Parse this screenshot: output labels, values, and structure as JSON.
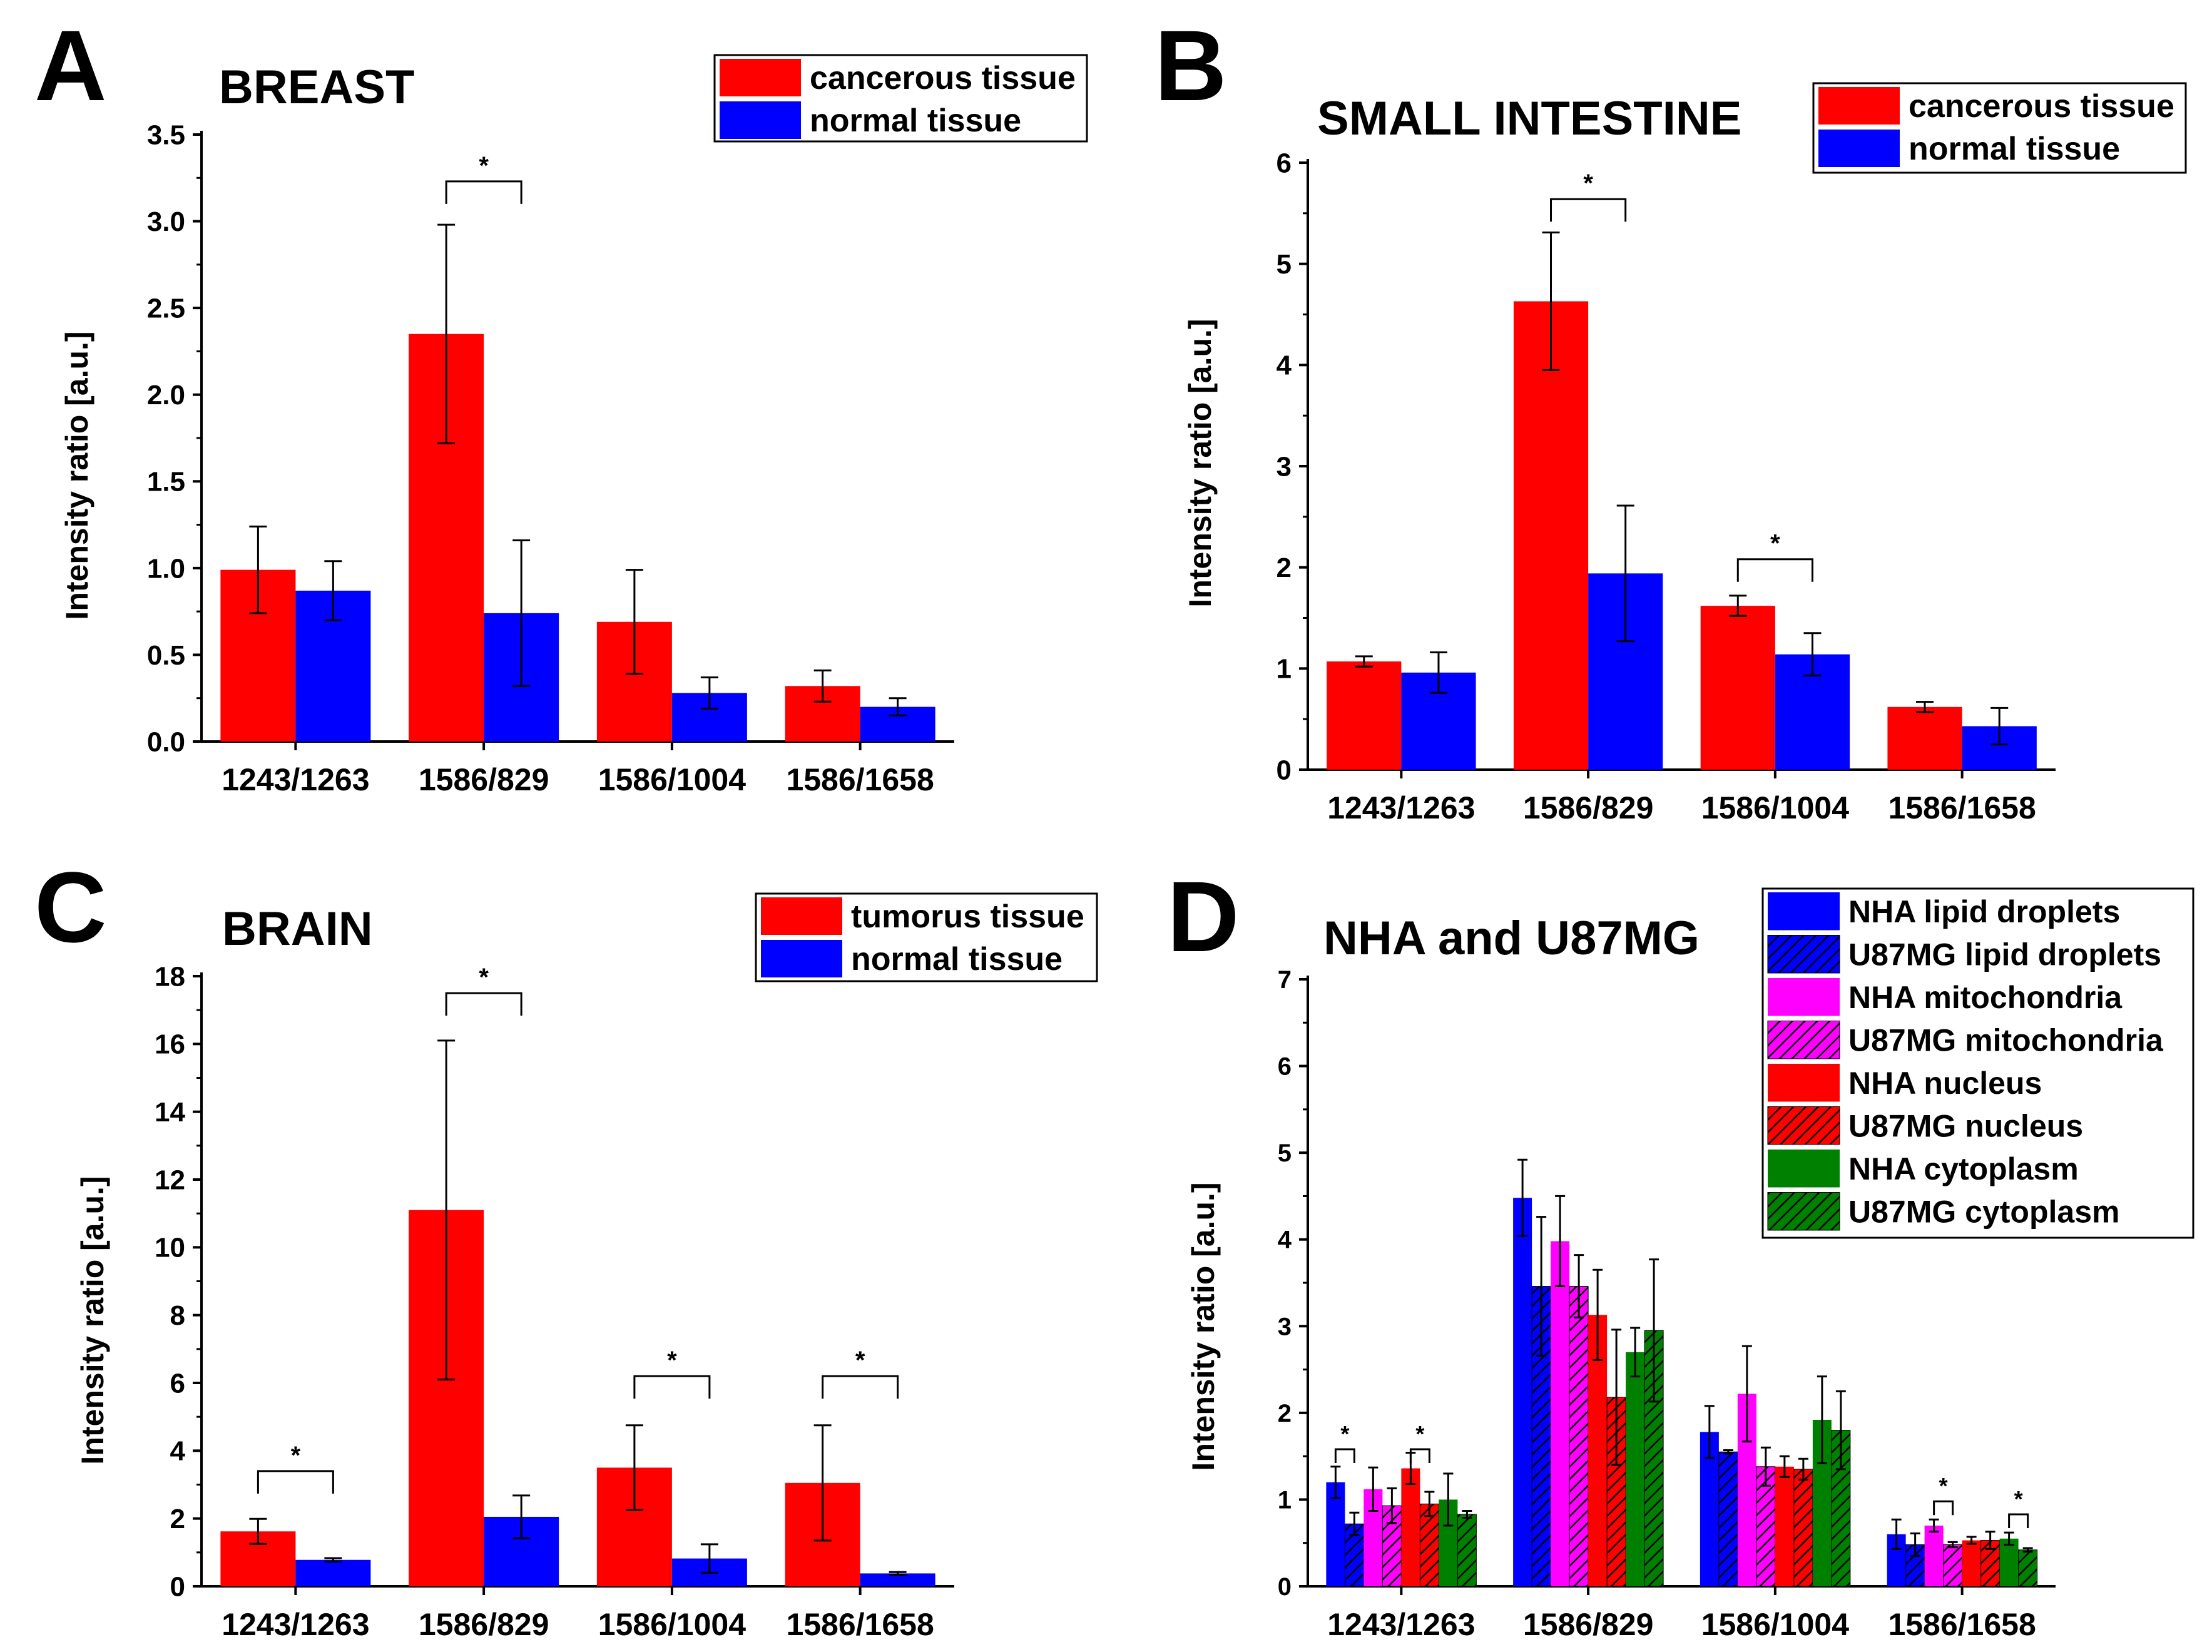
{
  "colors": {
    "red": "#ff0000",
    "blue": "#0000ff",
    "magenta": "#ff00ff",
    "green": "#008000",
    "axis": "#000000"
  },
  "chart_data": [
    {
      "panel": "A",
      "type": "bar",
      "title": "BREAST",
      "xlabel": "",
      "ylabel": "Intensity ratio [a.u.]",
      "ylim": [
        0,
        3.5
      ],
      "yticks": [
        "0.0",
        "0.5",
        "1.0",
        "1.5",
        "2.0",
        "2.5",
        "3.0",
        "3.5"
      ],
      "categories": [
        "1243/1263",
        "1586/829",
        "1586/1004",
        "1586/1658"
      ],
      "legend_position": "top-right",
      "series": [
        {
          "name": "cancerous tissue",
          "color": "#ff0000",
          "hatched": false,
          "values": [
            0.99,
            2.35,
            0.69,
            0.32
          ],
          "errors": [
            0.25,
            0.63,
            0.3,
            0.09
          ]
        },
        {
          "name": "normal tissue",
          "color": "#0000ff",
          "hatched": false,
          "values": [
            0.87,
            0.74,
            0.28,
            0.2
          ],
          "errors": [
            0.17,
            0.42,
            0.09,
            0.05
          ]
        }
      ],
      "significance": [
        {
          "category": 1,
          "from": 0,
          "to": 1,
          "y": 3.23,
          "label": "*"
        }
      ]
    },
    {
      "panel": "B",
      "type": "bar",
      "title": "SMALL INTESTINE",
      "xlabel": "",
      "ylabel": "Intensity ratio [a.u.]",
      "ylim": [
        0,
        6
      ],
      "yticks": [
        "0",
        "1",
        "2",
        "3",
        "4",
        "5",
        "6"
      ],
      "categories": [
        "1243/1263",
        "1586/829",
        "1586/1004",
        "1586/1658"
      ],
      "legend_position": "top-right",
      "series": [
        {
          "name": "cancerous tissue",
          "color": "#ff0000",
          "hatched": false,
          "values": [
            1.07,
            4.63,
            1.62,
            0.62
          ],
          "errors": [
            0.05,
            0.68,
            0.1,
            0.05
          ]
        },
        {
          "name": "normal tissue",
          "color": "#0000ff",
          "hatched": false,
          "values": [
            0.96,
            1.94,
            1.14,
            0.43
          ],
          "errors": [
            0.2,
            0.67,
            0.21,
            0.18
          ]
        }
      ],
      "significance": [
        {
          "category": 1,
          "from": 0,
          "to": 1,
          "y": 5.64,
          "label": "*"
        },
        {
          "category": 2,
          "from": 0,
          "to": 1,
          "y": 2.08,
          "label": "*"
        }
      ]
    },
    {
      "panel": "C",
      "type": "bar",
      "title": "BRAIN",
      "xlabel": "",
      "ylabel": "Intensity ratio [a.u.]",
      "ylim": [
        0,
        18
      ],
      "yticks": [
        "0",
        "2",
        "4",
        "6",
        "8",
        "10",
        "12",
        "14",
        "16",
        "18"
      ],
      "categories": [
        "1243/1263",
        "1586/829",
        "1586/1004",
        "1586/1658"
      ],
      "legend_position": "top-right",
      "series": [
        {
          "name": "tumorus tissue",
          "color": "#ff0000",
          "hatched": false,
          "values": [
            1.62,
            11.1,
            3.5,
            3.05
          ],
          "errors": [
            0.37,
            5.0,
            1.25,
            1.7
          ]
        },
        {
          "name": "normal tissue",
          "color": "#0000ff",
          "hatched": false,
          "values": [
            0.78,
            2.05,
            0.82,
            0.38
          ],
          "errors": [
            0.05,
            0.63,
            0.42,
            0.04
          ]
        }
      ],
      "significance": [
        {
          "category": 0,
          "from": 0,
          "to": 1,
          "y": 3.4,
          "label": "*"
        },
        {
          "category": 1,
          "from": 0,
          "to": 1,
          "y": 17.5,
          "label": "*"
        },
        {
          "category": 2,
          "from": 0,
          "to": 1,
          "y": 6.2,
          "label": "*"
        },
        {
          "category": 3,
          "from": 0,
          "to": 1,
          "y": 6.2,
          "label": "*"
        }
      ]
    },
    {
      "panel": "D",
      "type": "bar",
      "title": "NHA and U87MG",
      "xlabel": "",
      "ylabel": "Intensity ratio [a.u.]",
      "ylim": [
        0,
        7
      ],
      "yticks": [
        "0",
        "1",
        "2",
        "3",
        "4",
        "5",
        "6",
        "7"
      ],
      "categories": [
        "1243/1263",
        "1586/829",
        "1586/1004",
        "1586/1658"
      ],
      "legend_position": "top-right",
      "series": [
        {
          "name": "NHA lipid droplets",
          "color": "#0000ff",
          "hatched": false,
          "values": [
            1.2,
            4.48,
            1.78,
            0.6
          ],
          "errors": [
            0.18,
            0.44,
            0.3,
            0.17
          ]
        },
        {
          "name": "U87MG lipid droplets",
          "color": "#0000ff",
          "hatched": true,
          "values": [
            0.72,
            3.46,
            1.55,
            0.48
          ],
          "errors": [
            0.13,
            0.8,
            0.02,
            0.13
          ]
        },
        {
          "name": "NHA mitochondria",
          "color": "#ff00ff",
          "hatched": false,
          "values": [
            1.12,
            3.98,
            2.22,
            0.7
          ],
          "errors": [
            0.25,
            0.52,
            0.55,
            0.07
          ]
        },
        {
          "name": "U87MG mitochondria",
          "color": "#ff00ff",
          "hatched": true,
          "values": [
            0.93,
            3.46,
            1.38,
            0.48
          ],
          "errors": [
            0.2,
            0.36,
            0.22,
            0.03
          ]
        },
        {
          "name": "NHA nucleus",
          "color": "#ff0000",
          "hatched": false,
          "values": [
            1.36,
            3.13,
            1.38,
            0.53
          ],
          "errors": [
            0.18,
            0.52,
            0.12,
            0.04
          ]
        },
        {
          "name": "U87MG nucleus",
          "color": "#ff0000",
          "hatched": true,
          "values": [
            0.95,
            2.18,
            1.35,
            0.53
          ],
          "errors": [
            0.14,
            0.78,
            0.12,
            0.1
          ]
        },
        {
          "name": "NHA cytoplasm",
          "color": "#008000",
          "hatched": false,
          "values": [
            1.0,
            2.7,
            1.92,
            0.55
          ],
          "errors": [
            0.3,
            0.28,
            0.5,
            0.07
          ]
        },
        {
          "name": "U87MG cytoplasm",
          "color": "#008000",
          "hatched": true,
          "values": [
            0.83,
            2.95,
            1.8,
            0.42
          ],
          "errors": [
            0.04,
            0.82,
            0.45,
            0.02
          ]
        }
      ],
      "significance": [
        {
          "category": 0,
          "from": 0,
          "to": 1,
          "y": 1.58,
          "label": "*"
        },
        {
          "category": 0,
          "from": 4,
          "to": 5,
          "y": 1.58,
          "label": "*"
        },
        {
          "category": 3,
          "from": 2,
          "to": 3,
          "y": 0.98,
          "label": "*"
        },
        {
          "category": 3,
          "from": 6,
          "to": 7,
          "y": 0.83,
          "label": "*"
        }
      ]
    }
  ]
}
